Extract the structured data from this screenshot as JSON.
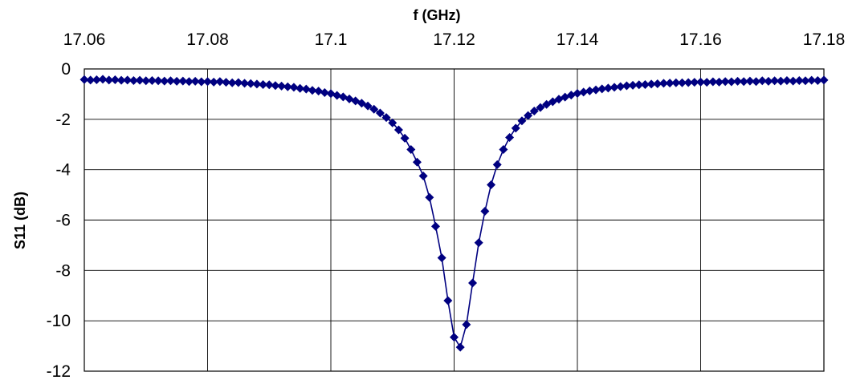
{
  "chart_data": {
    "type": "scatter",
    "xlabel": "f (GHz)",
    "ylabel": "S11 (dB)",
    "x_axis_position": "top",
    "xlim": [
      17.06,
      17.18
    ],
    "ylim": [
      -12,
      0
    ],
    "x_ticks": [
      "17.06",
      "17.08",
      "17.1",
      "17.12",
      "17.14",
      "17.16",
      "17.18"
    ],
    "y_ticks": [
      "0",
      "-2",
      "-4",
      "-6",
      "-8",
      "-10",
      "-12"
    ],
    "grid": true,
    "legend": "none",
    "series": [
      {
        "color": "#000080",
        "marker": "diamond",
        "line": true,
        "x": [
          17.06,
          17.061,
          17.062,
          17.063,
          17.064,
          17.065,
          17.066,
          17.067,
          17.068,
          17.069,
          17.07,
          17.071,
          17.072,
          17.073,
          17.074,
          17.075,
          17.076,
          17.077,
          17.078,
          17.079,
          17.08,
          17.081,
          17.082,
          17.083,
          17.084,
          17.085,
          17.086,
          17.087,
          17.088,
          17.089,
          17.09,
          17.091,
          17.092,
          17.093,
          17.094,
          17.095,
          17.096,
          17.097,
          17.098,
          17.099,
          17.1,
          17.101,
          17.102,
          17.103,
          17.104,
          17.105,
          17.106,
          17.107,
          17.108,
          17.109,
          17.11,
          17.111,
          17.112,
          17.113,
          17.114,
          17.115,
          17.116,
          17.117,
          17.118,
          17.119,
          17.12,
          17.121,
          17.122,
          17.123,
          17.124,
          17.125,
          17.126,
          17.127,
          17.128,
          17.129,
          17.13,
          17.131,
          17.132,
          17.133,
          17.134,
          17.135,
          17.136,
          17.137,
          17.138,
          17.139,
          17.14,
          17.141,
          17.142,
          17.143,
          17.144,
          17.145,
          17.146,
          17.147,
          17.148,
          17.149,
          17.15,
          17.151,
          17.152,
          17.153,
          17.154,
          17.155,
          17.156,
          17.157,
          17.158,
          17.159,
          17.16,
          17.161,
          17.162,
          17.163,
          17.164,
          17.165,
          17.166,
          17.167,
          17.168,
          17.169,
          17.17,
          17.171,
          17.172,
          17.173,
          17.174,
          17.175,
          17.176,
          17.177,
          17.178,
          17.179,
          17.18
        ],
        "y": [
          -0.42,
          -0.44,
          -0.43,
          -0.41,
          -0.44,
          -0.43,
          -0.45,
          -0.44,
          -0.46,
          -0.45,
          -0.47,
          -0.46,
          -0.47,
          -0.48,
          -0.47,
          -0.49,
          -0.48,
          -0.5,
          -0.49,
          -0.51,
          -0.5,
          -0.52,
          -0.5,
          -0.53,
          -0.55,
          -0.54,
          -0.57,
          -0.58,
          -0.6,
          -0.62,
          -0.63,
          -0.66,
          -0.68,
          -0.71,
          -0.73,
          -0.77,
          -0.8,
          -0.85,
          -0.88,
          -0.94,
          -0.98,
          -1.05,
          -1.11,
          -1.19,
          -1.27,
          -1.36,
          -1.47,
          -1.6,
          -1.75,
          -1.93,
          -2.14,
          -2.42,
          -2.75,
          -3.2,
          -3.7,
          -4.25,
          -5.1,
          -6.25,
          -7.5,
          -9.2,
          -10.65,
          -11.05,
          -10.15,
          -8.5,
          -6.9,
          -5.65,
          -4.6,
          -3.8,
          -3.2,
          -2.72,
          -2.35,
          -2.06,
          -1.85,
          -1.67,
          -1.53,
          -1.41,
          -1.3,
          -1.2,
          -1.12,
          -1.04,
          -0.97,
          -0.92,
          -0.87,
          -0.83,
          -0.79,
          -0.76,
          -0.73,
          -0.7,
          -0.67,
          -0.65,
          -0.63,
          -0.62,
          -0.6,
          -0.59,
          -0.57,
          -0.56,
          -0.55,
          -0.55,
          -0.54,
          -0.53,
          -0.52,
          -0.53,
          -0.51,
          -0.52,
          -0.5,
          -0.51,
          -0.49,
          -0.5,
          -0.48,
          -0.5,
          -0.47,
          -0.49,
          -0.47,
          -0.48,
          -0.46,
          -0.48,
          -0.46,
          -0.47,
          -0.45,
          -0.46,
          -0.44
        ]
      }
    ]
  }
}
